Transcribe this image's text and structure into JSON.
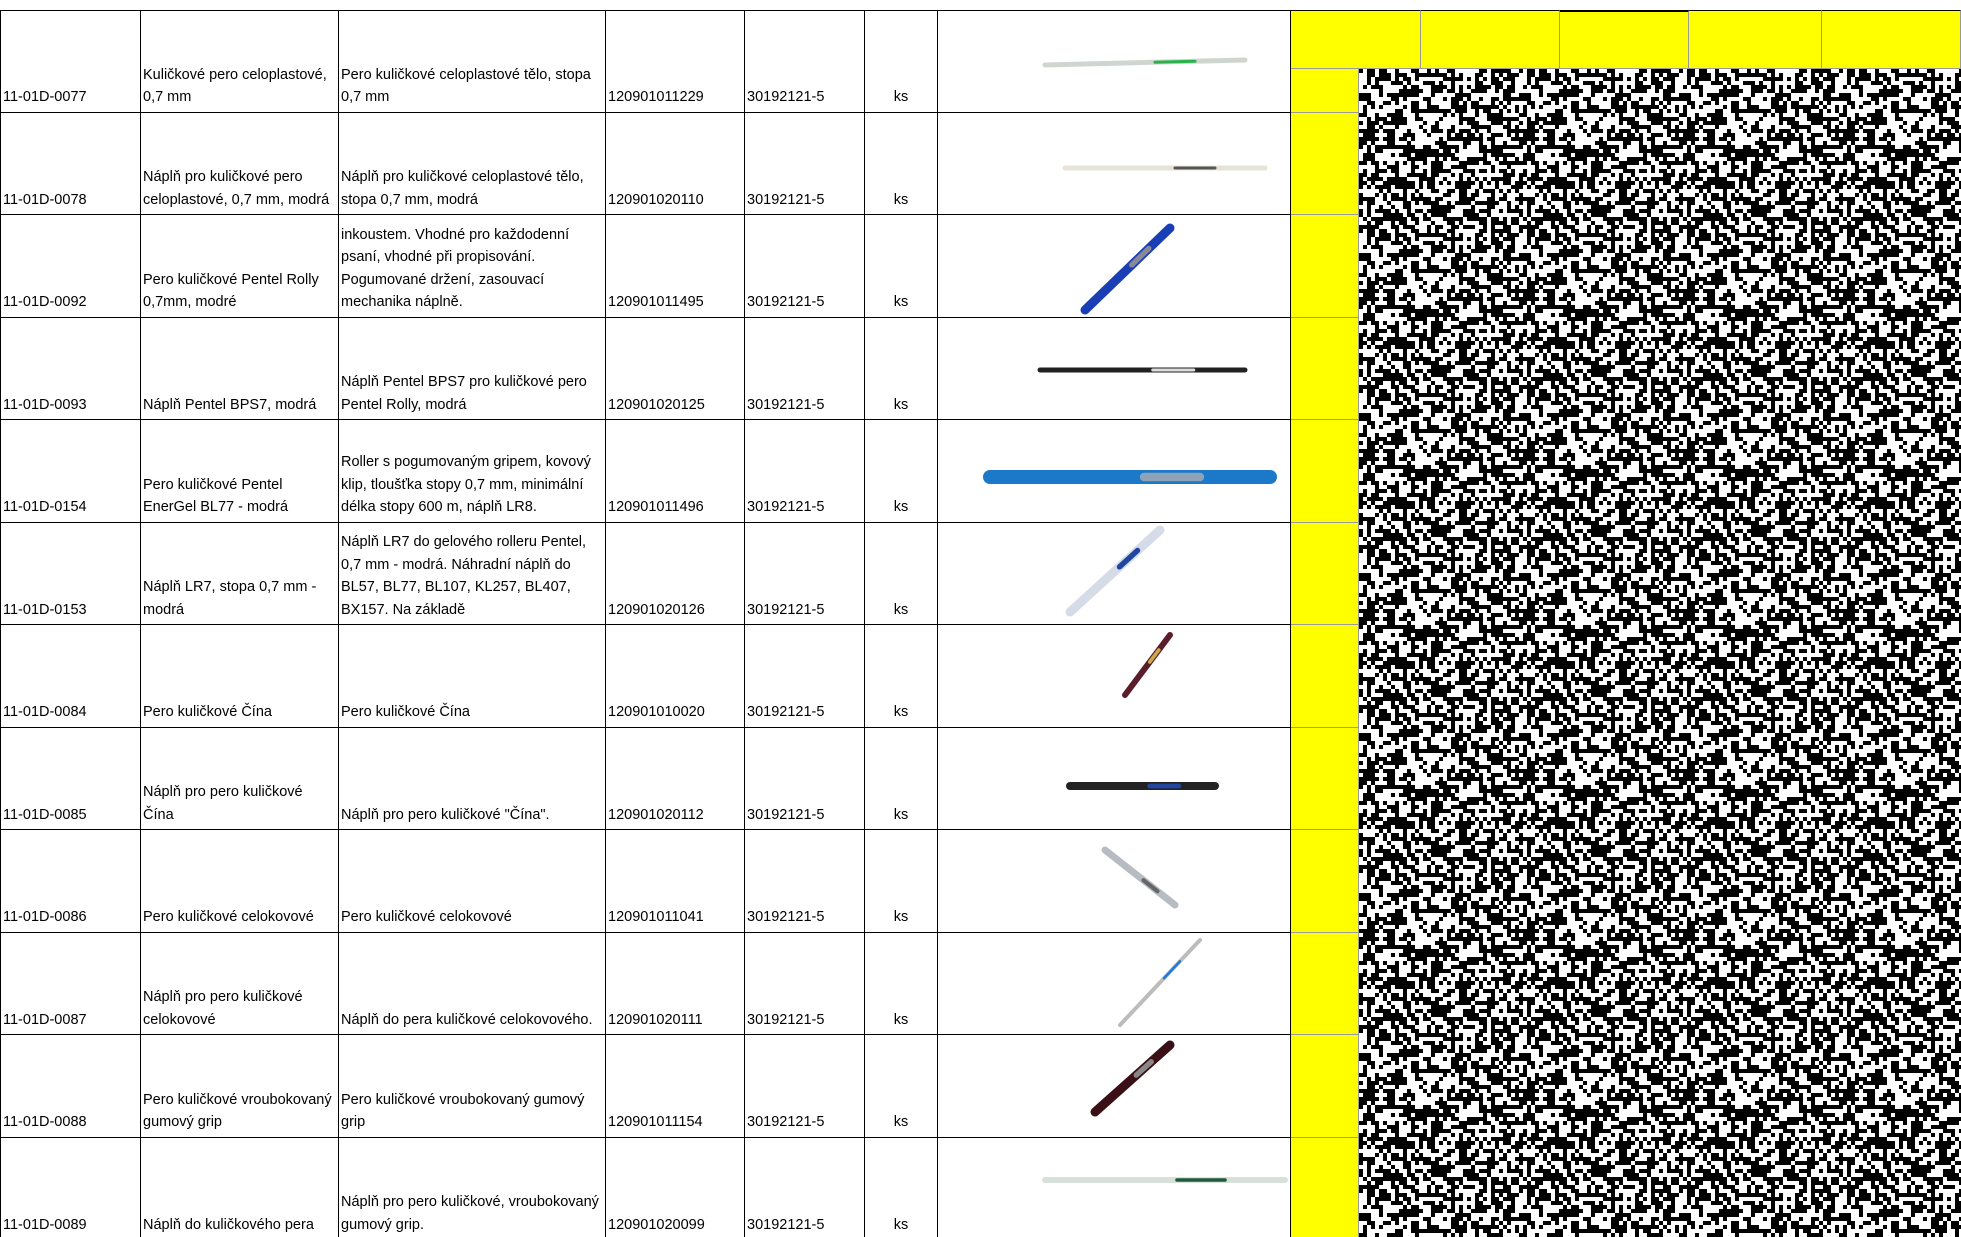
{
  "table": {
    "rows": [
      [
        "11-01D-0077",
        "Kuličkové pero celoplastové, 0,7 mm",
        "Pero kuličkové celoplastové tělo, stopa 0,7 mm",
        "120901011229",
        "30192121-5",
        "ks"
      ],
      [
        "11-01D-0078",
        "Náplň pro kuličkové pero celoplastové, 0,7 mm, modrá",
        "Náplň pro kuličkové celoplastové tělo, stopa 0,7 mm, modrá",
        "120901020110",
        "30192121-5",
        "ks"
      ],
      [
        "11-01D-0092",
        "Pero kuličkové Pentel Rolly 0,7mm, modré",
        "inkoustem. Vhodné pro každodenní psaní, vhodné při propisování. Pogumované držení, zasouvací mechanika náplně.",
        "120901011495",
        "30192121-5",
        "ks"
      ],
      [
        "11-01D-0093",
        "Náplň Pentel BPS7, modrá",
        "Náplň Pentel BPS7 pro kuličkové pero Pentel Rolly, modrá",
        "120901020125",
        "30192121-5",
        "ks"
      ],
      [
        "11-01D-0154",
        "Pero kuličkové Pentel EnerGel BL77 - modrá",
        "Roller s pogumovaným gripem, kovový klip, tloušťka stopy 0,7 mm, minimální délka stopy 600 m, náplň LR8.",
        "120901011496",
        "30192121-5",
        "ks"
      ],
      [
        "11-01D-0153",
        "Náplň LR7, stopa 0,7 mm - modrá",
        "Náplň LR7 do gelového rolleru Pentel, 0,7 mm - modrá. Náhradní náplň do BL57, BL77, BL107, KL257, BL407, BX157. Na základě",
        "120901020126",
        "30192121-5",
        "ks"
      ],
      [
        "11-01D-0084",
        "Pero kuličkové Čína",
        "Pero kuličkové Čína",
        "120901010020",
        "30192121-5",
        "ks"
      ],
      [
        "11-01D-0085",
        "Náplň pro pero kuličkové Čína",
        "Náplň pro pero kuličkové \"Čína\".",
        "120901020112",
        "30192121-5",
        "ks"
      ],
      [
        "11-01D-0086",
        "Pero kuličkové celokovové",
        "Pero kuličkové celokovové",
        "120901011041",
        "30192121-5",
        "ks"
      ],
      [
        "11-01D-0087",
        "Náplň pro pero kuličkové celokovové",
        "Náplň do pera kuličkové celokovového.",
        "120901020111",
        "30192121-5",
        "ks"
      ],
      [
        "11-01D-0088",
        "Pero kuličkové vroubokovaný gumový grip",
        "Pero kuličkové vroubokovaný gumový grip",
        "120901011154",
        "30192121-5",
        "ks"
      ],
      [
        "11-01D-0089",
        "Náplň do kuličkového pera",
        "Náplň pro pero kuličkové, vroubokovaný gumový grip.",
        "120901020099",
        "30192121-5",
        "ks"
      ]
    ]
  }
}
